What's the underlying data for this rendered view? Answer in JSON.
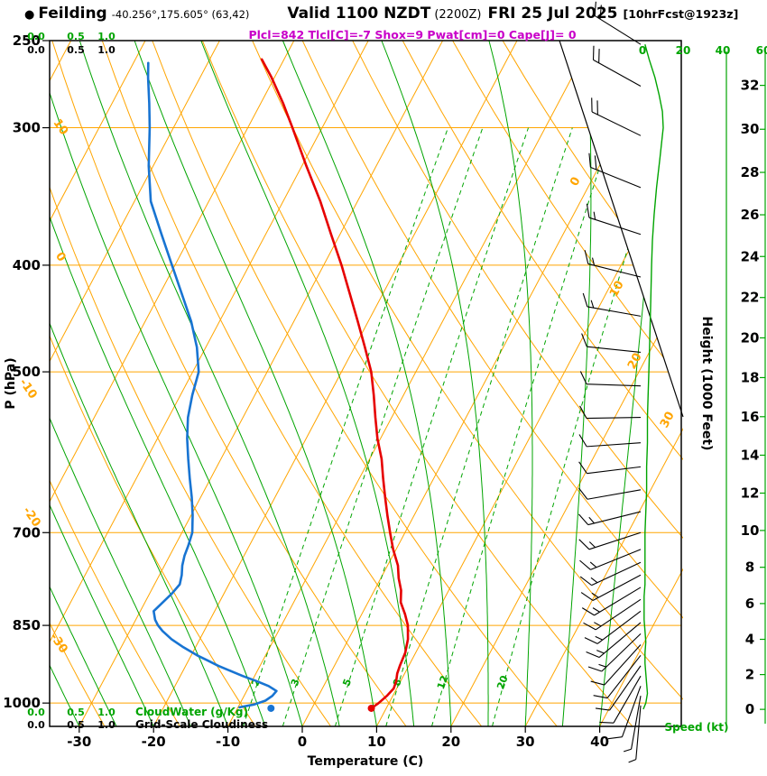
{
  "header": {
    "bullet": "●",
    "station": "Feilding",
    "coords": "-40.256°,175.605° (63,42)",
    "valid": "Valid 1100 NZDT",
    "valid_utc": "(2200Z)",
    "date": "FRI 25 Jul 2025",
    "forecast": "[10hrFcst@1923z]"
  },
  "indices_line": "Plcl=842 Tlcl[C]=-7 Shox=9 Pwat[cm]=0 Cape[J]= 0",
  "chart_data": {
    "type": "line",
    "subtype": "skew-t log-p atmospheric sounding",
    "axes": {
      "pressure": {
        "label": "P (hPa)",
        "ticks": [
          250,
          300,
          400,
          500,
          700,
          850,
          1000
        ],
        "range": [
          250,
          1050
        ],
        "scale": "log"
      },
      "temperature": {
        "label": "Temperature (C)",
        "ticks": [
          -30,
          -20,
          -10,
          0,
          10,
          20,
          30,
          40
        ]
      },
      "height": {
        "label": "Height (1000 Feet)",
        "ticks": [
          0,
          2,
          4,
          6,
          8,
          10,
          12,
          14,
          16,
          18,
          20,
          22,
          24,
          26,
          28,
          30,
          32
        ]
      },
      "speed": {
        "label": "Speed (kt)",
        "ticks": [
          0,
          20,
          40,
          60
        ]
      },
      "cloud_scale": {
        "ticks": [
          "0.0",
          "0.5",
          "1.0"
        ],
        "cloudwater_label": "CloudWater (g/Kg)",
        "cloudiness_label": "Grid-Scale Cloudiness"
      }
    },
    "grid": {
      "adiabat_label_values_left": [
        10,
        0,
        -10,
        -20,
        -30
      ],
      "isotherm_label_values_right": [
        0,
        10,
        20,
        30
      ],
      "mixing_ratio_values": [
        2,
        3,
        5,
        8,
        12,
        20
      ],
      "colors": {
        "grid": "#ffa500",
        "moist": "#00a400",
        "trace_temp": "#e60000",
        "trace_dew": "#1874d2",
        "indices": "#c800c8"
      }
    },
    "surface": {
      "pressure_hpa": 1011,
      "temperature_c": 8,
      "dewpoint_c": -5.5
    },
    "temperature_trace_pT": [
      [
        1011,
        8
      ],
      [
        1000,
        8.6
      ],
      [
        985,
        9.2
      ],
      [
        970,
        9.6
      ],
      [
        955,
        9.4
      ],
      [
        940,
        9.0
      ],
      [
        925,
        8.8
      ],
      [
        900,
        8.6
      ],
      [
        875,
        8.0
      ],
      [
        850,
        7.0
      ],
      [
        830,
        5.8
      ],
      [
        810,
        4.4
      ],
      [
        790,
        3.6
      ],
      [
        770,
        2.4
      ],
      [
        750,
        1.4
      ],
      [
        725,
        -0.4
      ],
      [
        700,
        -2.0
      ],
      [
        675,
        -3.6
      ],
      [
        650,
        -5.2
      ],
      [
        625,
        -6.8
      ],
      [
        600,
        -8.4
      ],
      [
        575,
        -10.4
      ],
      [
        550,
        -12.2
      ],
      [
        525,
        -14.0
      ],
      [
        500,
        -16.0
      ],
      [
        475,
        -18.6
      ],
      [
        450,
        -21.4
      ],
      [
        425,
        -24.4
      ],
      [
        400,
        -27.6
      ],
      [
        375,
        -31.2
      ],
      [
        350,
        -35.0
      ],
      [
        325,
        -39.4
      ],
      [
        300,
        -44.0
      ],
      [
        285,
        -47.0
      ],
      [
        270,
        -50.4
      ],
      [
        260,
        -53.0
      ]
    ],
    "dewpoint_trace_pT": [
      [
        1009,
        -9.8
      ],
      [
        1003,
        -8.0
      ],
      [
        995,
        -6.8
      ],
      [
        985,
        -6.2
      ],
      [
        975,
        -6.0
      ],
      [
        965,
        -7.4
      ],
      [
        955,
        -9.4
      ],
      [
        945,
        -11.6
      ],
      [
        935,
        -13.6
      ],
      [
        925,
        -15.6
      ],
      [
        915,
        -17.4
      ],
      [
        905,
        -19.2
      ],
      [
        890,
        -21.6
      ],
      [
        875,
        -23.8
      ],
      [
        860,
        -25.6
      ],
      [
        850,
        -26.6
      ],
      [
        840,
        -27.4
      ],
      [
        825,
        -28.2
      ],
      [
        810,
        -27.6
      ],
      [
        795,
        -27.0
      ],
      [
        780,
        -26.6
      ],
      [
        765,
        -27.0
      ],
      [
        750,
        -27.6
      ],
      [
        735,
        -28.0
      ],
      [
        720,
        -28.2
      ],
      [
        700,
        -28.6
      ],
      [
        675,
        -29.8
      ],
      [
        650,
        -31.2
      ],
      [
        625,
        -32.8
      ],
      [
        600,
        -34.4
      ],
      [
        575,
        -36.0
      ],
      [
        550,
        -37.4
      ],
      [
        525,
        -38.4
      ],
      [
        500,
        -39.2
      ],
      [
        475,
        -41.2
      ],
      [
        450,
        -43.8
      ],
      [
        425,
        -47.0
      ],
      [
        400,
        -50.4
      ],
      [
        375,
        -54.0
      ],
      [
        350,
        -57.8
      ],
      [
        325,
        -60.6
      ],
      [
        300,
        -63.2
      ],
      [
        285,
        -65.0
      ],
      [
        270,
        -67.0
      ],
      [
        262,
        -68.0
      ]
    ],
    "wind_profile": [
      [
        1005,
        185,
        4
      ],
      [
        985,
        190,
        6
      ],
      [
        965,
        200,
        8
      ],
      [
        945,
        210,
        8
      ],
      [
        925,
        215,
        10
      ],
      [
        905,
        218,
        12
      ],
      [
        885,
        222,
        12
      ],
      [
        865,
        226,
        14
      ],
      [
        845,
        230,
        15
      ],
      [
        825,
        233,
        15
      ],
      [
        805,
        236,
        15
      ],
      [
        785,
        239,
        15
      ],
      [
        765,
        242,
        15
      ],
      [
        745,
        245,
        15
      ],
      [
        725,
        248,
        15
      ],
      [
        700,
        252,
        14
      ],
      [
        670,
        256,
        13
      ],
      [
        640,
        260,
        12
      ],
      [
        610,
        263,
        12
      ],
      [
        580,
        266,
        12
      ],
      [
        550,
        269,
        12
      ],
      [
        515,
        272,
        12
      ],
      [
        480,
        276,
        12
      ],
      [
        445,
        280,
        13
      ],
      [
        410,
        284,
        15
      ],
      [
        375,
        288,
        16
      ],
      [
        340,
        292,
        18
      ],
      [
        305,
        296,
        20
      ],
      [
        275,
        299,
        20
      ],
      [
        252,
        302,
        22
      ]
    ],
    "cloudiness_profile": [
      [
        1013,
        0.01
      ],
      [
        1000,
        0.04
      ],
      [
        980,
        0.06
      ],
      [
        960,
        0.05
      ],
      [
        940,
        0.04
      ],
      [
        920,
        0.03
      ],
      [
        900,
        0.03
      ],
      [
        880,
        0.04
      ],
      [
        860,
        0.03
      ],
      [
        840,
        0.02
      ],
      [
        820,
        0.02
      ],
      [
        800,
        0.02
      ],
      [
        780,
        0.03
      ],
      [
        760,
        0.03
      ],
      [
        740,
        0.03
      ],
      [
        720,
        0.03
      ],
      [
        700,
        0.03
      ],
      [
        670,
        0.04
      ],
      [
        640,
        0.05
      ],
      [
        610,
        0.05
      ],
      [
        580,
        0.06
      ],
      [
        550,
        0.06
      ],
      [
        520,
        0.07
      ],
      [
        490,
        0.08
      ],
      [
        460,
        0.09
      ],
      [
        430,
        0.1
      ],
      [
        400,
        0.11
      ],
      [
        380,
        0.12
      ],
      [
        360,
        0.14
      ],
      [
        340,
        0.17
      ],
      [
        320,
        0.21
      ],
      [
        300,
        0.25
      ],
      [
        290,
        0.24
      ],
      [
        280,
        0.2
      ],
      [
        270,
        0.15
      ],
      [
        260,
        0.08
      ],
      [
        252,
        0.03
      ]
    ]
  }
}
